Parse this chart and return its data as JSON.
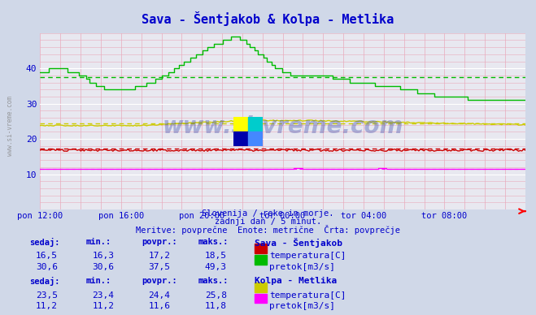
{
  "title": "Sava - Šentjakob & Kolpa - Metlika",
  "bg_color": "#d0d8e8",
  "plot_bg_color": "#e8e8f0",
  "grid_color_v": "#ddddee",
  "grid_color_h": "#ffcccc",
  "text_color": "#0000cc",
  "subtitle_lines": [
    "Slovenija / reke in morje.",
    "zadnji dan / 5 minut.",
    "Meritve: povprečne  Enote: metrične  Črta: povprečje"
  ],
  "xlabel_ticks": [
    "pon 12:00",
    "pon 16:00",
    "pon 20:00",
    "tor 00:00",
    "tor 04:00",
    "tor 08:00"
  ],
  "ylim": [
    0,
    50
  ],
  "yticks": [
    10,
    20,
    30,
    40
  ],
  "n_points": 288,
  "watermark": "www.si-vreme.com",
  "sava_temp_color": "#cc0000",
  "sava_pretok_color": "#00bb00",
  "kolpa_temp_color": "#cccc00",
  "kolpa_pretok_color": "#ff00ff",
  "sava_temp_avg": 17.2,
  "sava_pretok_avg": 37.5,
  "kolpa_temp_avg": 24.4,
  "kolpa_pretok_avg": 11.6,
  "logo_yellow": "#ffff00",
  "logo_cyan": "#00cccc",
  "logo_darkblue": "#0000aa",
  "logo_blue": "#4488ff",
  "legend_data": {
    "sava_label": "Sava - Šentjakob",
    "kolpa_label": "Kolpa - Metlika",
    "col_headers": [
      "sedaj:",
      "min.:",
      "povpr.:",
      "maks.:"
    ],
    "rows_sava": [
      {
        "sedaj": "16,5",
        "min": "16,3",
        "povpr": "17,2",
        "maks": "18,5",
        "color": "#cc0000",
        "name": "temperatura[C]"
      },
      {
        "sedaj": "30,6",
        "min": "30,6",
        "povpr": "37,5",
        "maks": "49,3",
        "color": "#00bb00",
        "name": "pretok[m3/s]"
      }
    ],
    "rows_kolpa": [
      {
        "sedaj": "23,5",
        "min": "23,4",
        "povpr": "24,4",
        "maks": "25,8",
        "color": "#cccc00",
        "name": "temperatura[C]"
      },
      {
        "sedaj": "11,2",
        "min": "11,2",
        "povpr": "11,6",
        "maks": "11,8",
        "color": "#ff00ff",
        "name": "pretok[m3/s]"
      }
    ]
  }
}
